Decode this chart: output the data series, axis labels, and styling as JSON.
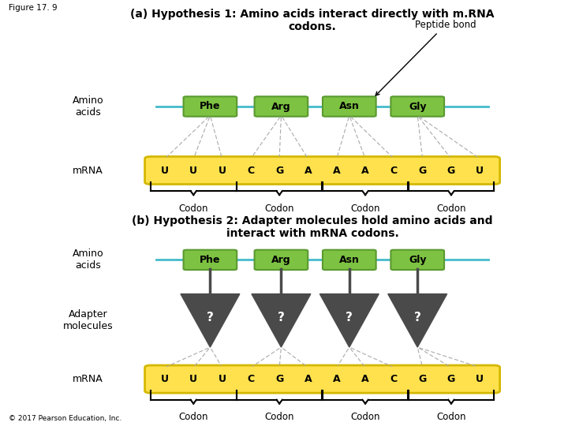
{
  "fig_label": "Figure 17. 9",
  "panel_a_title_bold": "(a) Hypothesis 1:",
  "panel_a_title_rest": " Amino acids interact directly with m.RNA\ncodons.",
  "panel_b_title_bold": "(b) Hypothesis 2:",
  "panel_b_title_rest": " Adapter molecules hold amino acids and\ninteract with mRNA codons.",
  "amino_acids": [
    "Phe",
    "Arg",
    "Asn",
    "Gly"
  ],
  "mrna_sequence": [
    "U",
    "U",
    "U",
    "C",
    "G",
    "A",
    "A",
    "A",
    "C",
    "G",
    "G",
    "U"
  ],
  "aa_box_color": "#7dc242",
  "aa_box_edge_color": "#5a9a30",
  "mrna_fill_color": "#ffe14d",
  "mrna_edge_color": "#d4b800",
  "adapter_color": "#4a4a4a",
  "chain_line_color": "#44bbcc",
  "dashed_line_color": "#aaaaaa",
  "peptide_bond_label": "Peptide bond",
  "amino_acids_label": "Amino\nacids",
  "mrna_label": "mRNA",
  "adapter_label": "Adapter\nmolecules",
  "copyright": "© 2017 Pearson Education, Inc.",
  "bg_color": "#ffffff"
}
